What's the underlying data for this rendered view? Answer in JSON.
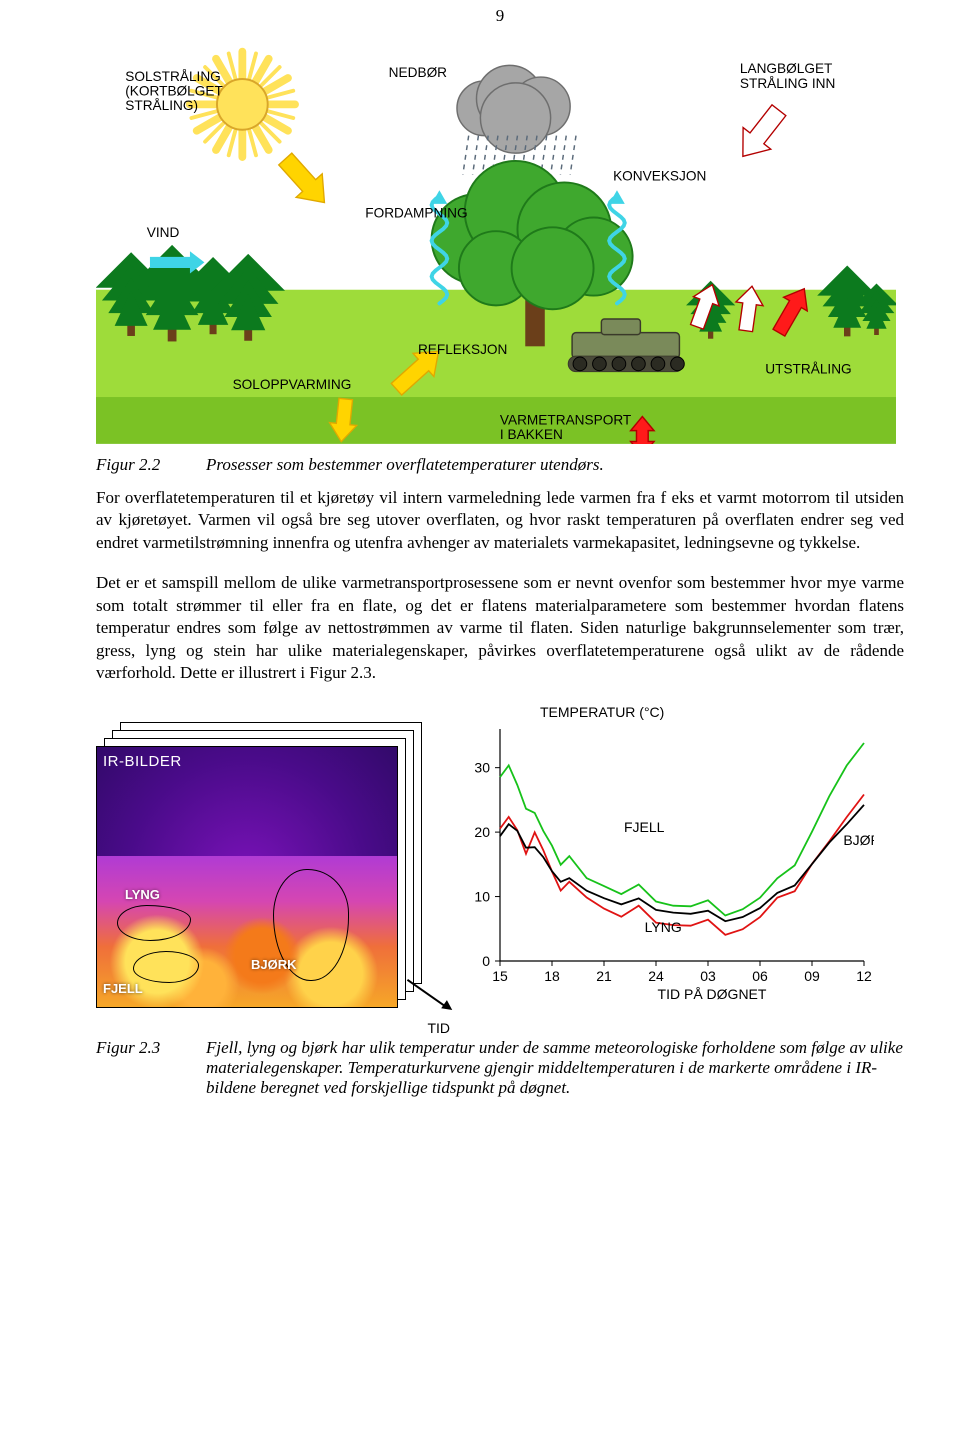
{
  "page_number": "9",
  "energy_diagram": {
    "labels": {
      "solstraling": "SOLSTRÅLING\n(KORTBØLGET\nSTRÅLING)",
      "nedbor": "NEDBØR",
      "konveksjon": "KONVEKSJON",
      "langbolget": "LANGBØLGET\nSTRÅLING INN",
      "vind": "VIND",
      "fordampning": "FORDAMPNING",
      "soloppvarming": "SOLOPPVARMING",
      "refleksjon": "REFLEKSJON",
      "varmetransport": "VARMETRANSPORT\nI BAKKEN",
      "utstraling": "UTSTRÅLING"
    },
    "colors": {
      "sky": "#ffffff",
      "grass": "#9edc3a",
      "ground_band": "#7bc225",
      "tree_dark": "#0c7a1e",
      "tree_light": "#3fb23a",
      "oak_crown": "#3fa82e",
      "oak_dark": "#1f7a1a",
      "trunk": "#6b3f1a",
      "cloud_fill": "#a6a6a6",
      "cloud_stroke": "#6e6e6e",
      "sun_fill": "#ffe25a",
      "sun_stroke": "#d9a62a",
      "arrow_yellow_fill": "#ffd400",
      "arrow_yellow_stroke": "#e0a800",
      "arrow_red_fill": "#ff1a1a",
      "arrow_red_stroke": "#b30000",
      "arrow_cyan": "#3fd4e6",
      "vehicle_fill": "#7a8a5a",
      "vehicle_stroke": "#3a3a2a"
    }
  },
  "caption1": {
    "label": "Figur 2.2",
    "text": "Prosesser som bestemmer overflatetemperaturer utendørs."
  },
  "para1": "For overflatetemperaturen til et kjøretøy vil intern varmeledning lede varmen fra f eks et varmt motorrom til utsiden av kjøretøyet. Varmen vil også bre seg utover overflaten, og hvor raskt temperaturen på overflaten endrer seg ved endret varmetilstrømning innenfra og utenfra avhenger av materialets varmekapasitet, ledningsevne og tykkelse.",
  "para2": "Det er et samspill mellom de ulike varmetransportprosessene som er nevnt ovenfor som bestemmer hvor mye varme som totalt strømmer til eller fra en flate, og det er flatens materialparametere som bestemmer hvordan flatens temperatur endres som følge av nettostrømmen av varme til flaten. Siden naturlige bakgrunnselementer som trær, gress, lyng og stein har ulike materialegenskaper, påvirkes overflatetemperaturene også ulikt av de rådende værforhold. Dette er illustrert i Figur 2.3.",
  "ir_figure": {
    "title": "IR-BILDER",
    "labels": {
      "lyng": "LYNG",
      "bjork": "BJØRK",
      "fjell": "FJELL",
      "tid": "TID"
    }
  },
  "temp_chart": {
    "type": "line",
    "title": "TEMPERATUR (°C)",
    "x_title": "TID PÅ DØGNET",
    "x_ticks": [
      "15",
      "18",
      "21",
      "24",
      "03",
      "06",
      "09",
      "12"
    ],
    "y_ticks": [
      0,
      10,
      20,
      30
    ],
    "ylim": [
      0,
      36
    ],
    "series_labels": {
      "fjell": "FJELL",
      "lyng": "LYNG",
      "bjork": "BJØRK"
    },
    "colors": {
      "fjell": "#17c21a",
      "lyng": "#e01313",
      "bjork": "#000000",
      "axis": "#000000",
      "background": "#ffffff"
    },
    "label_fontsize": 14,
    "line_width": 1.8,
    "series": {
      "fjell": [
        [
          15,
          28
        ],
        [
          15.5,
          30
        ],
        [
          16,
          27
        ],
        [
          16.5,
          25
        ],
        [
          17,
          22
        ],
        [
          17.5,
          20
        ],
        [
          18,
          18
        ],
        [
          18.5,
          16
        ],
        [
          19,
          15
        ],
        [
          20,
          13
        ],
        [
          21,
          12
        ],
        [
          22,
          11
        ],
        [
          23,
          10.5
        ],
        [
          24,
          9.8
        ],
        [
          1,
          9
        ],
        [
          2,
          8.6
        ],
        [
          3,
          8.2
        ],
        [
          4,
          8
        ],
        [
          5,
          8.3
        ],
        [
          6,
          9.5
        ],
        [
          7,
          12
        ],
        [
          8,
          16
        ],
        [
          9,
          20
        ],
        [
          10,
          25
        ],
        [
          11,
          30
        ],
        [
          12,
          35
        ]
      ],
      "lyng": [
        [
          15,
          20
        ],
        [
          15.5,
          22
        ],
        [
          16,
          20
        ],
        [
          16.5,
          18
        ],
        [
          17,
          19
        ],
        [
          17.5,
          17
        ],
        [
          18,
          14
        ],
        [
          18.5,
          12
        ],
        [
          19,
          11
        ],
        [
          20,
          10
        ],
        [
          21,
          8.5
        ],
        [
          22,
          7.5
        ],
        [
          23,
          7.2
        ],
        [
          24,
          6.5
        ],
        [
          1,
          6
        ],
        [
          2,
          5.6
        ],
        [
          3,
          5.2
        ],
        [
          4,
          5
        ],
        [
          5,
          5.2
        ],
        [
          6,
          6.5
        ],
        [
          7,
          9
        ],
        [
          8,
          12
        ],
        [
          9,
          15
        ],
        [
          10,
          18
        ],
        [
          11,
          22
        ],
        [
          12,
          27
        ]
      ],
      "bjork": [
        [
          15,
          19
        ],
        [
          15.5,
          21
        ],
        [
          16,
          20
        ],
        [
          16.5,
          18.5
        ],
        [
          17,
          17
        ],
        [
          17.5,
          16
        ],
        [
          18,
          14
        ],
        [
          18.5,
          13
        ],
        [
          19,
          12
        ],
        [
          20,
          11
        ],
        [
          21,
          10
        ],
        [
          22,
          9.2
        ],
        [
          23,
          8.8
        ],
        [
          24,
          8.3
        ],
        [
          1,
          7.8
        ],
        [
          2,
          7.4
        ],
        [
          3,
          7
        ],
        [
          4,
          6.8
        ],
        [
          5,
          7
        ],
        [
          6,
          8
        ],
        [
          7,
          10
        ],
        [
          8,
          12.5
        ],
        [
          9,
          15
        ],
        [
          10,
          18
        ],
        [
          11,
          21
        ],
        [
          12,
          25
        ]
      ]
    }
  },
  "caption2": {
    "label": "Figur 2.3",
    "text": "Fjell, lyng og bjørk har ulik temperatur under de samme meteorologiske forholdene som følge av ulike materialegenskaper. Temperaturkurvene gjengir middeltemperaturen i de markerte områdene i IR-bildene beregnet ved forskjellige tidspunkt på døgnet."
  }
}
